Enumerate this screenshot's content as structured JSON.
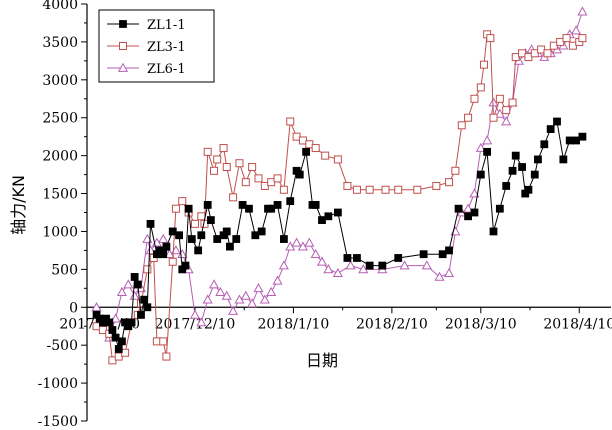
{
  "chart_data": {
    "type": "line",
    "xlabel": "日期",
    "ylabel": "轴力/KN",
    "ylim": [
      -1500,
      4000
    ],
    "y_ticks": [
      -1500,
      -1000,
      -500,
      0,
      500,
      1000,
      1500,
      2000,
      2500,
      3000,
      3500,
      4000
    ],
    "y_tick_labels": [
      "-1500",
      "-1000",
      "-500",
      "0",
      "500",
      "1000",
      "1500",
      "2000",
      "2500",
      "3000",
      "3500",
      "4000"
    ],
    "xlim": [
      "2017-11-06",
      "2018-04-20"
    ],
    "x_ticks": [
      "2017-11-10",
      "2017-12-10",
      "2018-01-10",
      "2018-02-10",
      "2018-03-10",
      "2018-04-10"
    ],
    "x_tick_labels": [
      "2017/11/10",
      "2017/12/10",
      "2018/1/10",
      "2018/2/10",
      "2018/3/10",
      "2018/4/10"
    ],
    "legend_position": "top-left",
    "grid": false,
    "series": [
      {
        "name": "ZL1-1",
        "color": "#000000",
        "marker": "filled-square",
        "points": [
          [
            "2017-11-09",
            -100
          ],
          [
            "2017-11-10",
            -150
          ],
          [
            "2017-11-11",
            -200
          ],
          [
            "2017-11-12",
            -150
          ],
          [
            "2017-11-13",
            -200
          ],
          [
            "2017-11-14",
            -300
          ],
          [
            "2017-11-15",
            -400
          ],
          [
            "2017-11-16",
            -550
          ],
          [
            "2017-11-17",
            -450
          ],
          [
            "2017-11-18",
            -200
          ],
          [
            "2017-11-19",
            -250
          ],
          [
            "2017-11-20",
            -200
          ],
          [
            "2017-11-21",
            400
          ],
          [
            "2017-11-22",
            300
          ],
          [
            "2017-11-23",
            -100
          ],
          [
            "2017-11-24",
            100
          ],
          [
            "2017-11-25",
            0
          ],
          [
            "2017-11-26",
            1100
          ],
          [
            "2017-11-28",
            700
          ],
          [
            "2017-11-29",
            750
          ],
          [
            "2017-11-30",
            700
          ],
          [
            "2017-12-01",
            800
          ],
          [
            "2017-12-03",
            1000
          ],
          [
            "2017-12-05",
            950
          ],
          [
            "2017-12-06",
            500
          ],
          [
            "2017-12-07",
            550
          ],
          [
            "2017-12-08",
            1300
          ],
          [
            "2017-12-09",
            900
          ],
          [
            "2017-12-11",
            750
          ],
          [
            "2017-12-12",
            950
          ],
          [
            "2017-12-14",
            1350
          ],
          [
            "2017-12-15",
            1150
          ],
          [
            "2017-12-17",
            900
          ],
          [
            "2017-12-19",
            950
          ],
          [
            "2017-12-20",
            1000
          ],
          [
            "2017-12-21",
            800
          ],
          [
            "2017-12-23",
            900
          ],
          [
            "2017-12-25",
            1350
          ],
          [
            "2017-12-27",
            1300
          ],
          [
            "2017-12-29",
            950
          ],
          [
            "2017-12-31",
            1000
          ],
          [
            "2018-01-02",
            1300
          ],
          [
            "2018-01-03",
            1300
          ],
          [
            "2018-01-05",
            1350
          ],
          [
            "2018-01-07",
            900
          ],
          [
            "2018-01-09",
            1400
          ],
          [
            "2018-01-11",
            1800
          ],
          [
            "2018-01-12",
            1750
          ],
          [
            "2018-01-14",
            2050
          ],
          [
            "2018-01-16",
            1350
          ],
          [
            "2018-01-17",
            1350
          ],
          [
            "2018-01-19",
            1150
          ],
          [
            "2018-01-21",
            1200
          ],
          [
            "2018-01-24",
            1250
          ],
          [
            "2018-01-27",
            650
          ],
          [
            "2018-01-30",
            650
          ],
          [
            "2018-02-03",
            550
          ],
          [
            "2018-02-07",
            550
          ],
          [
            "2018-02-12",
            650
          ],
          [
            "2018-02-20",
            700
          ],
          [
            "2018-02-26",
            700
          ],
          [
            "2018-02-28",
            750
          ],
          [
            "2018-03-03",
            1300
          ],
          [
            "2018-03-06",
            1200
          ],
          [
            "2018-03-08",
            1250
          ],
          [
            "2018-03-10",
            1750
          ],
          [
            "2018-03-12",
            2050
          ],
          [
            "2018-03-14",
            1000
          ],
          [
            "2018-03-16",
            1300
          ],
          [
            "2018-03-18",
            1600
          ],
          [
            "2018-03-20",
            1800
          ],
          [
            "2018-03-21",
            2000
          ],
          [
            "2018-03-23",
            1850
          ],
          [
            "2018-03-24",
            1500
          ],
          [
            "2018-03-25",
            1550
          ],
          [
            "2018-03-27",
            1750
          ],
          [
            "2018-03-28",
            1950
          ],
          [
            "2018-03-30",
            2150
          ],
          [
            "2018-04-01",
            2350
          ],
          [
            "2018-04-03",
            2450
          ],
          [
            "2018-04-05",
            1950
          ],
          [
            "2018-04-07",
            2200
          ],
          [
            "2018-04-09",
            2200
          ],
          [
            "2018-04-11",
            2250
          ]
        ]
      },
      {
        "name": "ZL3-1",
        "color": "#c0504d",
        "marker": "open-square",
        "points": [
          [
            "2017-11-09",
            -250
          ],
          [
            "2017-11-11",
            -300
          ],
          [
            "2017-11-13",
            -350
          ],
          [
            "2017-11-14",
            -700
          ],
          [
            "2017-11-16",
            -650
          ],
          [
            "2017-11-18",
            -600
          ],
          [
            "2017-11-20",
            -200
          ],
          [
            "2017-11-22",
            -100
          ],
          [
            "2017-11-23",
            50
          ],
          [
            "2017-11-25",
            500
          ],
          [
            "2017-11-27",
            650
          ],
          [
            "2017-11-28",
            -450
          ],
          [
            "2017-11-30",
            -450
          ],
          [
            "2017-12-01",
            -650
          ],
          [
            "2017-12-03",
            600
          ],
          [
            "2017-12-04",
            1300
          ],
          [
            "2017-12-06",
            1400
          ],
          [
            "2017-12-08",
            1250
          ],
          [
            "2017-12-10",
            1100
          ],
          [
            "2017-12-12",
            1200
          ],
          [
            "2017-12-13",
            1100
          ],
          [
            "2017-12-14",
            2050
          ],
          [
            "2017-12-16",
            1800
          ],
          [
            "2017-12-17",
            1950
          ],
          [
            "2017-12-19",
            2100
          ],
          [
            "2017-12-20",
            1850
          ],
          [
            "2017-12-22",
            1450
          ],
          [
            "2017-12-24",
            1900
          ],
          [
            "2017-12-26",
            1650
          ],
          [
            "2017-12-28",
            1850
          ],
          [
            "2017-12-30",
            1700
          ],
          [
            "2018-01-01",
            1600
          ],
          [
            "2018-01-03",
            1650
          ],
          [
            "2018-01-05",
            1700
          ],
          [
            "2018-01-07",
            1550
          ],
          [
            "2018-01-09",
            2450
          ],
          [
            "2018-01-11",
            2250
          ],
          [
            "2018-01-13",
            2200
          ],
          [
            "2018-01-15",
            2150
          ],
          [
            "2018-01-17",
            2100
          ],
          [
            "2018-01-20",
            2000
          ],
          [
            "2018-01-24",
            1950
          ],
          [
            "2018-01-27",
            1600
          ],
          [
            "2018-01-30",
            1550
          ],
          [
            "2018-02-03",
            1550
          ],
          [
            "2018-02-08",
            1550
          ],
          [
            "2018-02-12",
            1550
          ],
          [
            "2018-02-18",
            1550
          ],
          [
            "2018-02-24",
            1600
          ],
          [
            "2018-02-28",
            1650
          ],
          [
            "2018-03-02",
            1800
          ],
          [
            "2018-03-04",
            2400
          ],
          [
            "2018-03-06",
            2500
          ],
          [
            "2018-03-08",
            2750
          ],
          [
            "2018-03-10",
            2900
          ],
          [
            "2018-03-11",
            3200
          ],
          [
            "2018-03-12",
            3600
          ],
          [
            "2018-03-13",
            3550
          ],
          [
            "2018-03-14",
            2500
          ],
          [
            "2018-03-16",
            2750
          ],
          [
            "2018-03-18",
            2600
          ],
          [
            "2018-03-20",
            2700
          ],
          [
            "2018-03-21",
            3300
          ],
          [
            "2018-03-23",
            3350
          ],
          [
            "2018-03-25",
            3300
          ],
          [
            "2018-03-27",
            3350
          ],
          [
            "2018-03-29",
            3400
          ],
          [
            "2018-03-31",
            3350
          ],
          [
            "2018-04-02",
            3450
          ],
          [
            "2018-04-04",
            3500
          ],
          [
            "2018-04-06",
            3550
          ],
          [
            "2018-04-08",
            3450
          ],
          [
            "2018-04-10",
            3500
          ],
          [
            "2018-04-11",
            3550
          ]
        ]
      },
      {
        "name": "ZL6-1",
        "color": "#b75fb5",
        "marker": "open-triangle",
        "points": [
          [
            "2017-11-09",
            0
          ],
          [
            "2017-11-11",
            -200
          ],
          [
            "2017-11-13",
            -400
          ],
          [
            "2017-11-15",
            -150
          ],
          [
            "2017-11-17",
            200
          ],
          [
            "2017-11-19",
            300
          ],
          [
            "2017-11-21",
            150
          ],
          [
            "2017-11-23",
            250
          ],
          [
            "2017-11-25",
            900
          ],
          [
            "2017-11-26",
            750
          ],
          [
            "2017-11-28",
            850
          ],
          [
            "2017-11-30",
            900
          ],
          [
            "2017-12-02",
            700
          ],
          [
            "2017-12-04",
            750
          ],
          [
            "2017-12-06",
            700
          ],
          [
            "2017-12-08",
            500
          ],
          [
            "2017-12-10",
            -100
          ],
          [
            "2017-12-12",
            -200
          ],
          [
            "2017-12-14",
            100
          ],
          [
            "2017-12-16",
            300
          ],
          [
            "2017-12-18",
            200
          ],
          [
            "2017-12-20",
            150
          ],
          [
            "2017-12-22",
            -50
          ],
          [
            "2017-12-24",
            100
          ],
          [
            "2017-12-26",
            150
          ],
          [
            "2017-12-28",
            50
          ],
          [
            "2017-12-30",
            250
          ],
          [
            "2018-01-01",
            100
          ],
          [
            "2018-01-03",
            200
          ],
          [
            "2018-01-05",
            350
          ],
          [
            "2018-01-07",
            550
          ],
          [
            "2018-01-09",
            800
          ],
          [
            "2018-01-11",
            850
          ],
          [
            "2018-01-13",
            800
          ],
          [
            "2018-01-15",
            850
          ],
          [
            "2018-01-17",
            700
          ],
          [
            "2018-01-19",
            600
          ],
          [
            "2018-01-21",
            500
          ],
          [
            "2018-01-24",
            450
          ],
          [
            "2018-01-28",
            550
          ],
          [
            "2018-02-01",
            500
          ],
          [
            "2018-02-07",
            500
          ],
          [
            "2018-02-14",
            550
          ],
          [
            "2018-02-21",
            550
          ],
          [
            "2018-02-25",
            400
          ],
          [
            "2018-02-28",
            450
          ],
          [
            "2018-03-02",
            1000
          ],
          [
            "2018-03-04",
            1250
          ],
          [
            "2018-03-06",
            1300
          ],
          [
            "2018-03-08",
            1500
          ],
          [
            "2018-03-10",
            2100
          ],
          [
            "2018-03-12",
            2200
          ],
          [
            "2018-03-14",
            2700
          ],
          [
            "2018-03-16",
            2550
          ],
          [
            "2018-03-18",
            2450
          ],
          [
            "2018-03-20",
            2700
          ],
          [
            "2018-03-22",
            3250
          ],
          [
            "2018-03-24",
            3350
          ],
          [
            "2018-03-26",
            3400
          ],
          [
            "2018-03-28",
            3350
          ],
          [
            "2018-03-30",
            3300
          ],
          [
            "2018-04-01",
            3350
          ],
          [
            "2018-04-03",
            3400
          ],
          [
            "2018-04-05",
            3450
          ],
          [
            "2018-04-07",
            3600
          ],
          [
            "2018-04-09",
            3650
          ],
          [
            "2018-04-11",
            3900
          ]
        ]
      }
    ]
  }
}
